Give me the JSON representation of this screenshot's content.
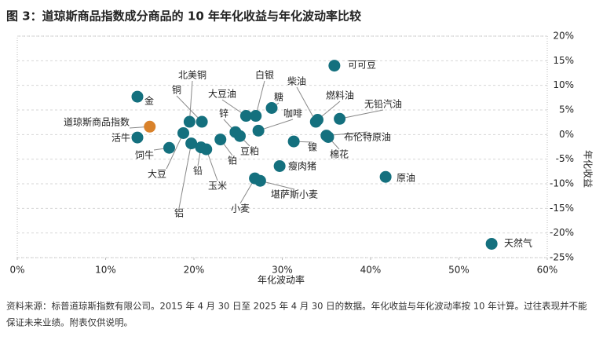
{
  "chart_data": {
    "type": "scatter",
    "title": "图 3：道琼斯商品指数成分商品的 10 年年化收益与年化波动率比较",
    "x_label": "年化波动率",
    "y_label": "年化收益",
    "xlim": [
      0,
      60
    ],
    "ylim": [
      -25,
      20
    ],
    "xticks": [
      {
        "value": 0,
        "label": "0%"
      },
      {
        "value": 10,
        "label": "10%"
      },
      {
        "value": 20,
        "label": "20%"
      },
      {
        "value": 30,
        "label": "30%"
      },
      {
        "value": 40,
        "label": "40%"
      },
      {
        "value": 50,
        "label": "50%"
      },
      {
        "value": 60,
        "label": "60%"
      }
    ],
    "yticks": [
      {
        "value": 20,
        "label": "20%"
      },
      {
        "value": 15,
        "label": "15%"
      },
      {
        "value": 10,
        "label": "10%"
      },
      {
        "value": 5,
        "label": "5%"
      },
      {
        "value": 0,
        "label": "0%"
      },
      {
        "value": -5,
        "label": "-5%"
      },
      {
        "value": -10,
        "label": "-10%"
      },
      {
        "value": -15,
        "label": "-15%"
      },
      {
        "value": -20,
        "label": "-20%"
      },
      {
        "value": -25,
        "label": "-25%"
      }
    ],
    "grid": true,
    "points": [
      {
        "label": "可可豆",
        "x": 35.9,
        "y": 14.0,
        "color": "#14707e"
      },
      {
        "label": "金",
        "x": 13.6,
        "y": 7.7,
        "color": "#14707e"
      },
      {
        "label": "道琼斯商品指数",
        "x": 15.0,
        "y": 1.6,
        "color": "#d9822b"
      },
      {
        "label": "活牛",
        "x": 13.6,
        "y": -0.6,
        "color": "#14707e"
      },
      {
        "label": "饲牛",
        "x": 17.2,
        "y": -2.7,
        "color": "#14707e"
      },
      {
        "label": "北美铜",
        "x": 19.5,
        "y": 2.6,
        "color": "#14707e"
      },
      {
        "label": "铜",
        "x": 20.9,
        "y": 2.6,
        "color": "#14707e"
      },
      {
        "label": "大豆",
        "x": 18.8,
        "y": 0.3,
        "color": "#14707e"
      },
      {
        "label": "铝",
        "x": 19.7,
        "y": -1.8,
        "color": "#14707e"
      },
      {
        "label": "铅",
        "x": 20.8,
        "y": -2.6,
        "color": "#14707e"
      },
      {
        "label": "玉米",
        "x": 21.4,
        "y": -3.0,
        "color": "#14707e"
      },
      {
        "label": "铂",
        "x": 23.0,
        "y": -1.0,
        "color": "#14707e"
      },
      {
        "label": "锌",
        "x": 24.7,
        "y": 0.5,
        "color": "#14707e"
      },
      {
        "label": "豆粕",
        "x": 25.2,
        "y": -0.3,
        "color": "#14707e"
      },
      {
        "label": "大豆油",
        "x": 25.9,
        "y": 3.8,
        "color": "#14707e"
      },
      {
        "label": "白银",
        "x": 27.0,
        "y": 3.8,
        "color": "#14707e"
      },
      {
        "label": "糖",
        "x": 28.8,
        "y": 5.4,
        "color": "#14707e"
      },
      {
        "label": "咖啡",
        "x": 27.3,
        "y": 0.8,
        "color": "#14707e"
      },
      {
        "label": "柴油",
        "x": 33.8,
        "y": 2.6,
        "color": "#14707e"
      },
      {
        "label": "燃料油",
        "x": 34.0,
        "y": 3.0,
        "color": "#14707e"
      },
      {
        "label": "无铅汽油",
        "x": 36.5,
        "y": 3.2,
        "color": "#14707e"
      },
      {
        "label": "布伦特原油",
        "x": 35.0,
        "y": -0.2,
        "color": "#14707e"
      },
      {
        "label": "棉花",
        "x": 35.2,
        "y": -0.5,
        "color": "#14707e"
      },
      {
        "label": "镍",
        "x": 31.3,
        "y": -1.4,
        "color": "#14707e"
      },
      {
        "label": "瘦肉猪",
        "x": 29.7,
        "y": -6.4,
        "color": "#14707e"
      },
      {
        "label": "原油",
        "x": 41.7,
        "y": -8.6,
        "color": "#14707e"
      },
      {
        "label": "小麦",
        "x": 26.9,
        "y": -8.9,
        "color": "#14707e"
      },
      {
        "label": "堪萨斯小麦",
        "x": 27.5,
        "y": -9.4,
        "color": "#14707e"
      },
      {
        "label": "天然气",
        "x": 53.7,
        "y": -22.2,
        "color": "#14707e"
      }
    ],
    "footnote": [
      "资料来源：标普道琼斯指数有限公司。2015 年 4 月 30 日至 2025 年 4 月 30 日的数据。年化收益与年化波动率按 10 年计算。过往表现并不能",
      "保证未来业绩。附表仅供说明。"
    ]
  }
}
